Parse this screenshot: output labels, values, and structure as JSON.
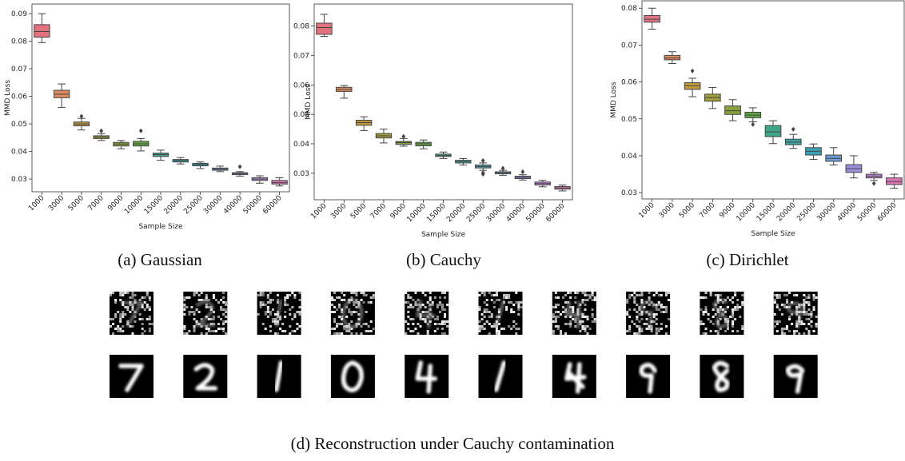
{
  "chart_data": [
    {
      "type": "box",
      "caption": "(a) Gaussian",
      "x_label": "Sample Size",
      "y_label": "MMD Loss",
      "categories": [
        "1000",
        "3000",
        "5000",
        "7000",
        "9000",
        "10000",
        "15000",
        "20000",
        "25000",
        "30000",
        "40000",
        "50000",
        "60000"
      ],
      "ylim": [
        0.0254,
        0.0935
      ],
      "yticks": [
        0.03,
        0.04,
        0.05,
        0.06,
        0.07,
        0.08,
        0.09
      ],
      "colors": [
        "#e3727f",
        "#dd8a5c",
        "#c0993d",
        "#a09f3c",
        "#86a23e",
        "#62a544",
        "#3fa68a",
        "#3ba5a0",
        "#3ea2b6",
        "#6d9cd6",
        "#9d8fe0",
        "#c180d6",
        "#db75b3"
      ],
      "stats": [
        [
          0.0795,
          0.0815,
          0.0835,
          0.086,
          0.09
        ],
        [
          0.056,
          0.0595,
          0.0608,
          0.0622,
          0.0645
        ],
        [
          0.0478,
          0.0493,
          0.05,
          0.0507,
          0.052
        ],
        [
          0.044,
          0.0447,
          0.0452,
          0.0457,
          0.0465
        ],
        [
          0.041,
          0.042,
          0.0427,
          0.0433,
          0.044
        ],
        [
          0.0402,
          0.042,
          0.0428,
          0.0437,
          0.0447
        ],
        [
          0.0368,
          0.0382,
          0.0389,
          0.0394,
          0.0405
        ],
        [
          0.0355,
          0.0362,
          0.0367,
          0.0371,
          0.0378
        ],
        [
          0.0338,
          0.0348,
          0.0353,
          0.0357,
          0.0362
        ],
        [
          0.0327,
          0.0332,
          0.0336,
          0.034,
          0.0347
        ],
        [
          0.031,
          0.0316,
          0.032,
          0.0323,
          0.0327
        ],
        [
          0.0285,
          0.0295,
          0.03,
          0.0305,
          0.0312
        ],
        [
          0.0275,
          0.0282,
          0.0287,
          0.0295,
          0.0305
        ]
      ],
      "outliers": [
        [],
        [],
        [
          0.0528
        ],
        [
          0.0475
        ],
        [],
        [
          0.0475
        ],
        [],
        [],
        [],
        [],
        [
          0.0345
        ],
        [],
        []
      ]
    },
    {
      "type": "box",
      "caption": "(b) Cauchy",
      "x_label": "Sample Size",
      "y_label": "MMD Loss",
      "categories": [
        "1000",
        "3000",
        "5000",
        "7000",
        "9000",
        "10000",
        "15000",
        "20000",
        "25000",
        "30000",
        "40000",
        "50000",
        "60000"
      ],
      "ylim": [
        0.021,
        0.0875
      ],
      "yticks": [
        0.03,
        0.04,
        0.05,
        0.06,
        0.07,
        0.08
      ],
      "colors": [
        "#e3727f",
        "#dd8a5c",
        "#c0993d",
        "#a09f3c",
        "#86a23e",
        "#62a544",
        "#3fa68a",
        "#3ba5a0",
        "#3ea2b6",
        "#6d9cd6",
        "#9d8fe0",
        "#c180d6",
        "#db75b3"
      ],
      "stats": [
        [
          0.0765,
          0.0772,
          0.0795,
          0.081,
          0.084
        ],
        [
          0.0555,
          0.0578,
          0.0585,
          0.0592,
          0.0598
        ],
        [
          0.0445,
          0.0463,
          0.0472,
          0.048,
          0.0492
        ],
        [
          0.0403,
          0.042,
          0.0427,
          0.0435,
          0.045
        ],
        [
          0.0392,
          0.0398,
          0.0404,
          0.0408,
          0.0418
        ],
        [
          0.0383,
          0.0393,
          0.04,
          0.0405,
          0.0413
        ],
        [
          0.035,
          0.0357,
          0.036,
          0.0365,
          0.0372
        ],
        [
          0.0328,
          0.0335,
          0.034,
          0.0344,
          0.035
        ],
        [
          0.031,
          0.0318,
          0.0323,
          0.0328,
          0.0335
        ],
        [
          0.0293,
          0.0298,
          0.0302,
          0.0305,
          0.031
        ],
        [
          0.0277,
          0.0282,
          0.0286,
          0.029,
          0.0295
        ],
        [
          0.0254,
          0.026,
          0.0265,
          0.027,
          0.0276
        ],
        [
          0.024,
          0.0246,
          0.025,
          0.0255,
          0.026
        ]
      ],
      "outliers": [
        [],
        [],
        [],
        [],
        [
          0.0425
        ],
        [],
        [],
        [],
        [
          0.0297,
          0.0302,
          0.0343
        ],
        [
          0.0317
        ],
        [
          0.0305
        ],
        [],
        []
      ]
    },
    {
      "type": "box",
      "caption": "(c) Dirichlet",
      "x_label": "Sample Size",
      "y_label": "MMD Loss",
      "categories": [
        "1000",
        "3000",
        "5000",
        "7000",
        "9000",
        "10000",
        "15000",
        "20000",
        "25000",
        "30000",
        "40000",
        "50000",
        "60000"
      ],
      "ylim": [
        0.0283,
        0.082
      ],
      "yticks": [
        0.03,
        0.04,
        0.05,
        0.06,
        0.07,
        0.08
      ],
      "colors": [
        "#e3727f",
        "#dd8a5c",
        "#c0993d",
        "#a09f3c",
        "#86a23e",
        "#62a544",
        "#3fa68a",
        "#3ba5a0",
        "#3ea2b6",
        "#6d9cd6",
        "#9d8fe0",
        "#c180d6",
        "#db75b3"
      ],
      "stats": [
        [
          0.0743,
          0.0762,
          0.077,
          0.078,
          0.08
        ],
        [
          0.065,
          0.066,
          0.0665,
          0.0672,
          0.0682
        ],
        [
          0.056,
          0.058,
          0.059,
          0.0598,
          0.061
        ],
        [
          0.0528,
          0.0548,
          0.0558,
          0.0567,
          0.0585
        ],
        [
          0.0495,
          0.0512,
          0.0522,
          0.0535,
          0.0552
        ],
        [
          0.0492,
          0.0503,
          0.051,
          0.0518,
          0.053
        ],
        [
          0.0433,
          0.0452,
          0.0465,
          0.0482,
          0.0495
        ],
        [
          0.042,
          0.043,
          0.0437,
          0.0445,
          0.0458
        ],
        [
          0.039,
          0.0402,
          0.0412,
          0.0422,
          0.0432
        ],
        [
          0.0375,
          0.0385,
          0.0393,
          0.0402,
          0.0422
        ],
        [
          0.034,
          0.0355,
          0.0365,
          0.0376,
          0.04
        ],
        [
          0.0333,
          0.034,
          0.0345,
          0.035,
          0.0355
        ],
        [
          0.0312,
          0.0322,
          0.033,
          0.034,
          0.035
        ]
      ],
      "outliers": [
        [],
        [],
        [
          0.063
        ],
        [],
        [],
        [
          0.0485
        ],
        [],
        [
          0.0472
        ],
        [],
        [],
        [],
        [
          0.0325
        ],
        []
      ]
    }
  ],
  "figure_caption": "(d) Reconstruction under Cauchy contamination"
}
